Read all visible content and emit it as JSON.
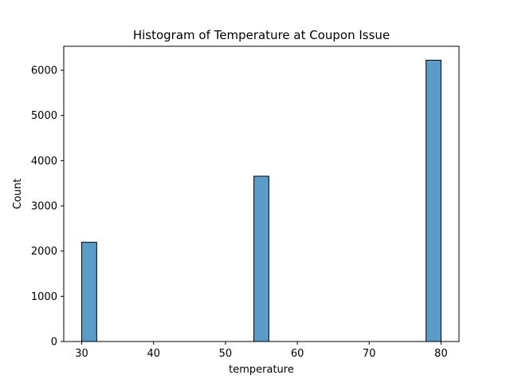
{
  "chart_data": {
    "type": "bar",
    "title": "Histogram of Temperature at Coupon Issue",
    "xlabel": "temperature",
    "ylabel": "Count",
    "xlim": [
      27.5,
      82.5
    ],
    "ylim": [
      0,
      6530
    ],
    "xticks": [
      30,
      40,
      50,
      60,
      70,
      80
    ],
    "yticks": [
      0,
      1000,
      2000,
      3000,
      4000,
      5000,
      6000
    ],
    "bin_width": 2.083,
    "bins": [
      {
        "x_start": 30.0,
        "x_end": 32.083,
        "count": 2195
      },
      {
        "x_start": 53.958,
        "x_end": 56.042,
        "count": 3656
      },
      {
        "x_start": 77.917,
        "x_end": 80.0,
        "count": 6222
      }
    ],
    "grid": false,
    "colors": {
      "bar_fill": "#5b9bc8",
      "bar_edge": "#000000"
    }
  }
}
